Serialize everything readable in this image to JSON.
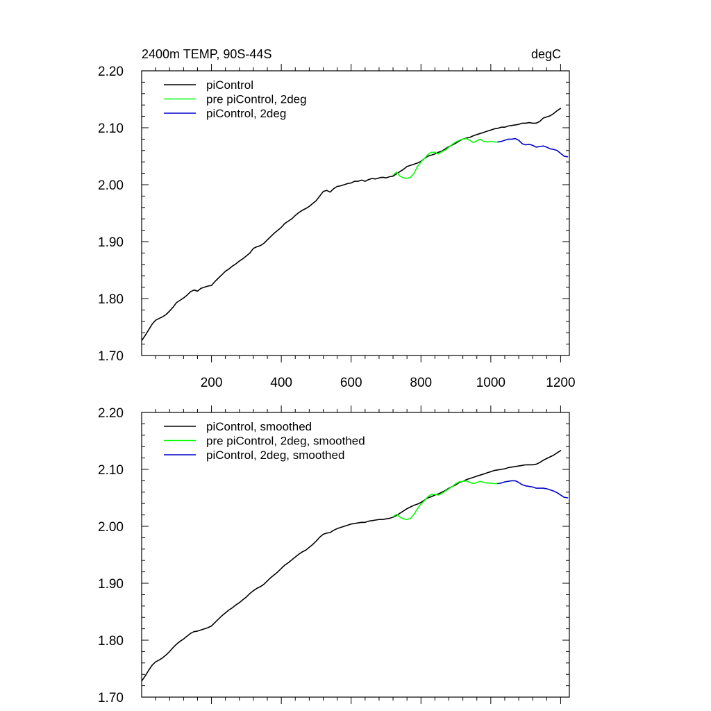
{
  "chart_data": [
    {
      "type": "line",
      "title_left": "2400m TEMP, 90S-44S",
      "title_right": "degC",
      "xlim": [
        0,
        1225
      ],
      "ylim": [
        1.7,
        2.2
      ],
      "x_ticks": [
        200,
        400,
        600,
        800,
        1000,
        1200
      ],
      "x_tick_labels": [
        "200",
        "400",
        "600",
        "800",
        "1000",
        "1200"
      ],
      "y_ticks": [
        1.7,
        1.8,
        1.9,
        2.0,
        2.1,
        2.2
      ],
      "y_tick_labels": [
        "1.70",
        "1.80",
        "1.90",
        "2.00",
        "2.10",
        "2.20"
      ],
      "show_x_tick_labels": true,
      "legend_position": "top-left",
      "series": [
        {
          "name": "piControl",
          "color": "#000000",
          "x": [
            1,
            10,
            20,
            30,
            40,
            50,
            60,
            70,
            80,
            90,
            100,
            110,
            120,
            130,
            140,
            150,
            160,
            170,
            180,
            190,
            200,
            210,
            220,
            230,
            240,
            250,
            260,
            270,
            280,
            290,
            300,
            310,
            320,
            330,
            340,
            350,
            360,
            370,
            380,
            390,
            400,
            410,
            420,
            430,
            440,
            450,
            460,
            470,
            480,
            490,
            500,
            510,
            520,
            530,
            540,
            550,
            560,
            570,
            580,
            590,
            600,
            610,
            620,
            630,
            640,
            650,
            660,
            670,
            680,
            690,
            700,
            710,
            720,
            730,
            740,
            750,
            760,
            770,
            780,
            790,
            800,
            810,
            820,
            830,
            840,
            850,
            860,
            870,
            880,
            890,
            900,
            910,
            920,
            930,
            940,
            950,
            960,
            970,
            980,
            990,
            1000,
            1010,
            1020,
            1030,
            1040,
            1050,
            1060,
            1070,
            1080,
            1090,
            1100,
            1110,
            1120,
            1130,
            1140,
            1150,
            1160,
            1170,
            1180,
            1190,
            1200
          ],
          "values": [
            1.727,
            1.735,
            1.745,
            1.755,
            1.762,
            1.765,
            1.768,
            1.772,
            1.778,
            1.785,
            1.793,
            1.797,
            1.801,
            1.806,
            1.812,
            1.815,
            1.813,
            1.818,
            1.82,
            1.822,
            1.823,
            1.83,
            1.836,
            1.842,
            1.848,
            1.852,
            1.857,
            1.861,
            1.866,
            1.87,
            1.875,
            1.88,
            1.888,
            1.891,
            1.893,
            1.897,
            1.903,
            1.909,
            1.915,
            1.92,
            1.925,
            1.932,
            1.936,
            1.94,
            1.946,
            1.951,
            1.955,
            1.958,
            1.962,
            1.967,
            1.972,
            1.98,
            1.988,
            1.99,
            1.987,
            1.993,
            1.997,
            1.998,
            2.0,
            2.002,
            2.003,
            2.006,
            2.006,
            2.008,
            2.006,
            2.009,
            2.011,
            2.01,
            2.012,
            2.013,
            2.012,
            2.014,
            2.015,
            2.019,
            2.023,
            2.027,
            2.032,
            2.034,
            2.036,
            2.038,
            2.041,
            2.046,
            2.05,
            2.052,
            2.054,
            2.057,
            2.059,
            2.063,
            2.067,
            2.07,
            2.073,
            2.077,
            2.08,
            2.082,
            2.083,
            2.086,
            2.088,
            2.09,
            2.092,
            2.094,
            2.096,
            2.098,
            2.099,
            2.101,
            2.101,
            2.103,
            2.104,
            2.105,
            2.106,
            2.108,
            2.108,
            2.109,
            2.108,
            2.108,
            2.111,
            2.117,
            2.119,
            2.121,
            2.125,
            2.13,
            2.134
          ]
        },
        {
          "name": "pre piControl, 2deg",
          "color": "#00ff00",
          "x": [
            720,
            730,
            740,
            750,
            760,
            770,
            780,
            790,
            800,
            810,
            820,
            830,
            840,
            850,
            860,
            870,
            880,
            890,
            900,
            910,
            920,
            930,
            940,
            950,
            960,
            970,
            980,
            990,
            1000,
            1010,
            1020
          ],
          "values": [
            2.017,
            2.022,
            2.015,
            2.012,
            2.011,
            2.013,
            2.02,
            2.032,
            2.04,
            2.046,
            2.053,
            2.057,
            2.057,
            2.054,
            2.058,
            2.061,
            2.066,
            2.071,
            2.075,
            2.078,
            2.08,
            2.081,
            2.078,
            2.074,
            2.077,
            2.08,
            2.076,
            2.075,
            2.076,
            2.075,
            2.075
          ]
        },
        {
          "name": "piControl, 2deg",
          "color": "#0000cc",
          "x": [
            1020,
            1030,
            1040,
            1050,
            1060,
            1070,
            1080,
            1090,
            1100,
            1110,
            1120,
            1130,
            1140,
            1150,
            1160,
            1170,
            1180,
            1190,
            1200,
            1210,
            1220
          ],
          "values": [
            2.075,
            2.076,
            2.078,
            2.08,
            2.08,
            2.081,
            2.078,
            2.072,
            2.07,
            2.071,
            2.069,
            2.066,
            2.067,
            2.068,
            2.066,
            2.063,
            2.062,
            2.06,
            2.055,
            2.05,
            2.049
          ]
        }
      ]
    },
    {
      "type": "line",
      "title_left": "",
      "title_right": "",
      "xlim": [
        0,
        1225
      ],
      "ylim": [
        1.7,
        2.2
      ],
      "x_ticks": [
        200,
        400,
        600,
        800,
        1000,
        1200
      ],
      "x_tick_labels": [],
      "y_ticks": [
        1.7,
        1.8,
        1.9,
        2.0,
        2.1,
        2.2
      ],
      "y_tick_labels": [
        "1.70",
        "1.80",
        "1.90",
        "2.00",
        "2.10",
        "2.20"
      ],
      "show_x_tick_labels": false,
      "legend_position": "top-left",
      "series": [
        {
          "name": "piControl, smoothed",
          "color": "#000000",
          "x": [
            1,
            10,
            20,
            30,
            40,
            50,
            60,
            70,
            80,
            90,
            100,
            110,
            120,
            130,
            140,
            150,
            160,
            170,
            180,
            190,
            200,
            210,
            220,
            230,
            240,
            250,
            260,
            270,
            280,
            290,
            300,
            310,
            320,
            330,
            340,
            350,
            360,
            370,
            380,
            390,
            400,
            410,
            420,
            430,
            440,
            450,
            460,
            470,
            480,
            490,
            500,
            510,
            520,
            530,
            540,
            550,
            560,
            570,
            580,
            590,
            600,
            610,
            620,
            630,
            640,
            650,
            660,
            670,
            680,
            690,
            700,
            710,
            720,
            730,
            740,
            750,
            760,
            770,
            780,
            790,
            800,
            810,
            820,
            830,
            840,
            850,
            860,
            870,
            880,
            890,
            900,
            910,
            920,
            930,
            940,
            950,
            960,
            970,
            980,
            990,
            1000,
            1010,
            1020,
            1030,
            1040,
            1050,
            1060,
            1070,
            1080,
            1090,
            1100,
            1110,
            1120,
            1130,
            1140,
            1150,
            1160,
            1170,
            1180,
            1190,
            1200
          ],
          "values": [
            1.729,
            1.737,
            1.747,
            1.756,
            1.762,
            1.765,
            1.769,
            1.774,
            1.78,
            1.787,
            1.793,
            1.798,
            1.802,
            1.807,
            1.812,
            1.815,
            1.816,
            1.818,
            1.82,
            1.822,
            1.825,
            1.831,
            1.837,
            1.843,
            1.848,
            1.853,
            1.857,
            1.862,
            1.866,
            1.871,
            1.876,
            1.882,
            1.887,
            1.891,
            1.894,
            1.898,
            1.904,
            1.91,
            1.915,
            1.92,
            1.926,
            1.932,
            1.936,
            1.941,
            1.946,
            1.951,
            1.955,
            1.958,
            1.963,
            1.968,
            1.974,
            1.981,
            1.986,
            1.988,
            1.989,
            1.993,
            1.996,
            1.998,
            2.0,
            2.002,
            2.004,
            2.005,
            2.006,
            2.007,
            2.007,
            2.009,
            2.01,
            2.011,
            2.012,
            2.012,
            2.013,
            2.014,
            2.016,
            2.019,
            2.023,
            2.027,
            2.031,
            2.034,
            2.037,
            2.039,
            2.042,
            2.046,
            2.05,
            2.052,
            2.055,
            2.057,
            2.06,
            2.063,
            2.067,
            2.07,
            2.073,
            2.077,
            2.079,
            2.082,
            2.084,
            2.086,
            2.088,
            2.09,
            2.092,
            2.094,
            2.096,
            2.098,
            2.099,
            2.1,
            2.101,
            2.103,
            2.104,
            2.105,
            2.106,
            2.107,
            2.108,
            2.108,
            2.108,
            2.109,
            2.112,
            2.116,
            2.119,
            2.122,
            2.125,
            2.129,
            2.133
          ]
        },
        {
          "name": "pre piControl, 2deg, smoothed",
          "color": "#00ff00",
          "x": [
            720,
            730,
            740,
            750,
            760,
            770,
            780,
            790,
            800,
            810,
            820,
            830,
            840,
            850,
            860,
            870,
            880,
            890,
            900,
            910,
            920,
            930,
            940,
            950,
            960,
            970,
            980,
            990,
            1000,
            1010,
            1020
          ],
          "values": [
            2.017,
            2.021,
            2.016,
            2.013,
            2.012,
            2.014,
            2.021,
            2.031,
            2.039,
            2.045,
            2.052,
            2.056,
            2.056,
            2.055,
            2.058,
            2.062,
            2.066,
            2.07,
            2.075,
            2.078,
            2.079,
            2.08,
            2.077,
            2.075,
            2.077,
            2.079,
            2.077,
            2.076,
            2.076,
            2.075,
            2.075
          ]
        },
        {
          "name": "piControl, 2deg, smoothed",
          "color": "#0000cc",
          "x": [
            1020,
            1030,
            1040,
            1050,
            1060,
            1070,
            1080,
            1090,
            1100,
            1110,
            1120,
            1130,
            1140,
            1150,
            1160,
            1170,
            1180,
            1190,
            1200,
            1210,
            1220
          ],
          "values": [
            2.075,
            2.076,
            2.078,
            2.079,
            2.08,
            2.08,
            2.077,
            2.073,
            2.071,
            2.07,
            2.069,
            2.067,
            2.067,
            2.067,
            2.066,
            2.064,
            2.062,
            2.059,
            2.055,
            2.051,
            2.05
          ]
        }
      ]
    }
  ]
}
